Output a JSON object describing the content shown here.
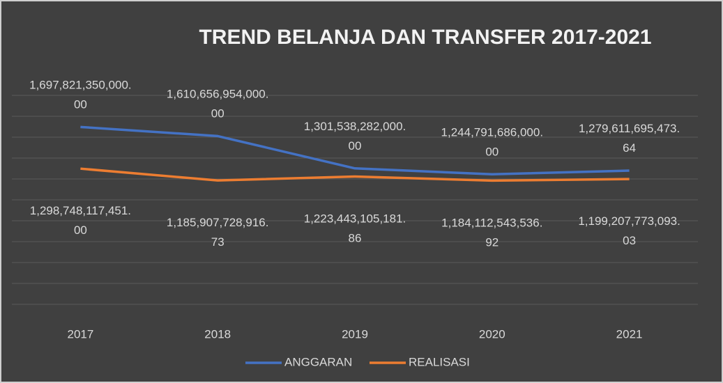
{
  "chart_data": {
    "type": "line",
    "title": "TREND BELANJA DAN TRANSFER 2017-2021",
    "categories": [
      "2017",
      "2018",
      "2019",
      "2020",
      "2021"
    ],
    "series": [
      {
        "name": "ANGGARAN",
        "color": "#4472c4",
        "values": [
          1697821350000.0,
          1610656954000.0,
          1301538282000.0,
          1244791686000.0,
          1279611695473.64
        ],
        "value_labels": [
          "1,697,821,350,000.00",
          "1,610,656,954,000.00",
          "1,301,538,282,000.00",
          "1,244,791,686,000.00",
          "1,279,611,695,473.64"
        ]
      },
      {
        "name": "REALISASI",
        "color": "#ed7d31",
        "values": [
          1298748117451.0,
          1185907728916.73,
          1223443105181.86,
          1184112543536.92,
          1199207773093.03
        ],
        "value_labels": [
          "1,298,748,117,451.00",
          "1,185,907,728,916.73",
          "1,223,443,105,181.86",
          "1,184,112,543,536.92",
          "1,199,207,773,093.03"
        ]
      }
    ],
    "ylim": [
      0,
      2000000000000
    ],
    "yticks": [
      0,
      200000000000,
      400000000000,
      600000000000,
      800000000000,
      1000000000000,
      1200000000000,
      1400000000000,
      1600000000000,
      1800000000000,
      2000000000000
    ],
    "grid": true,
    "legend": "bottom"
  }
}
